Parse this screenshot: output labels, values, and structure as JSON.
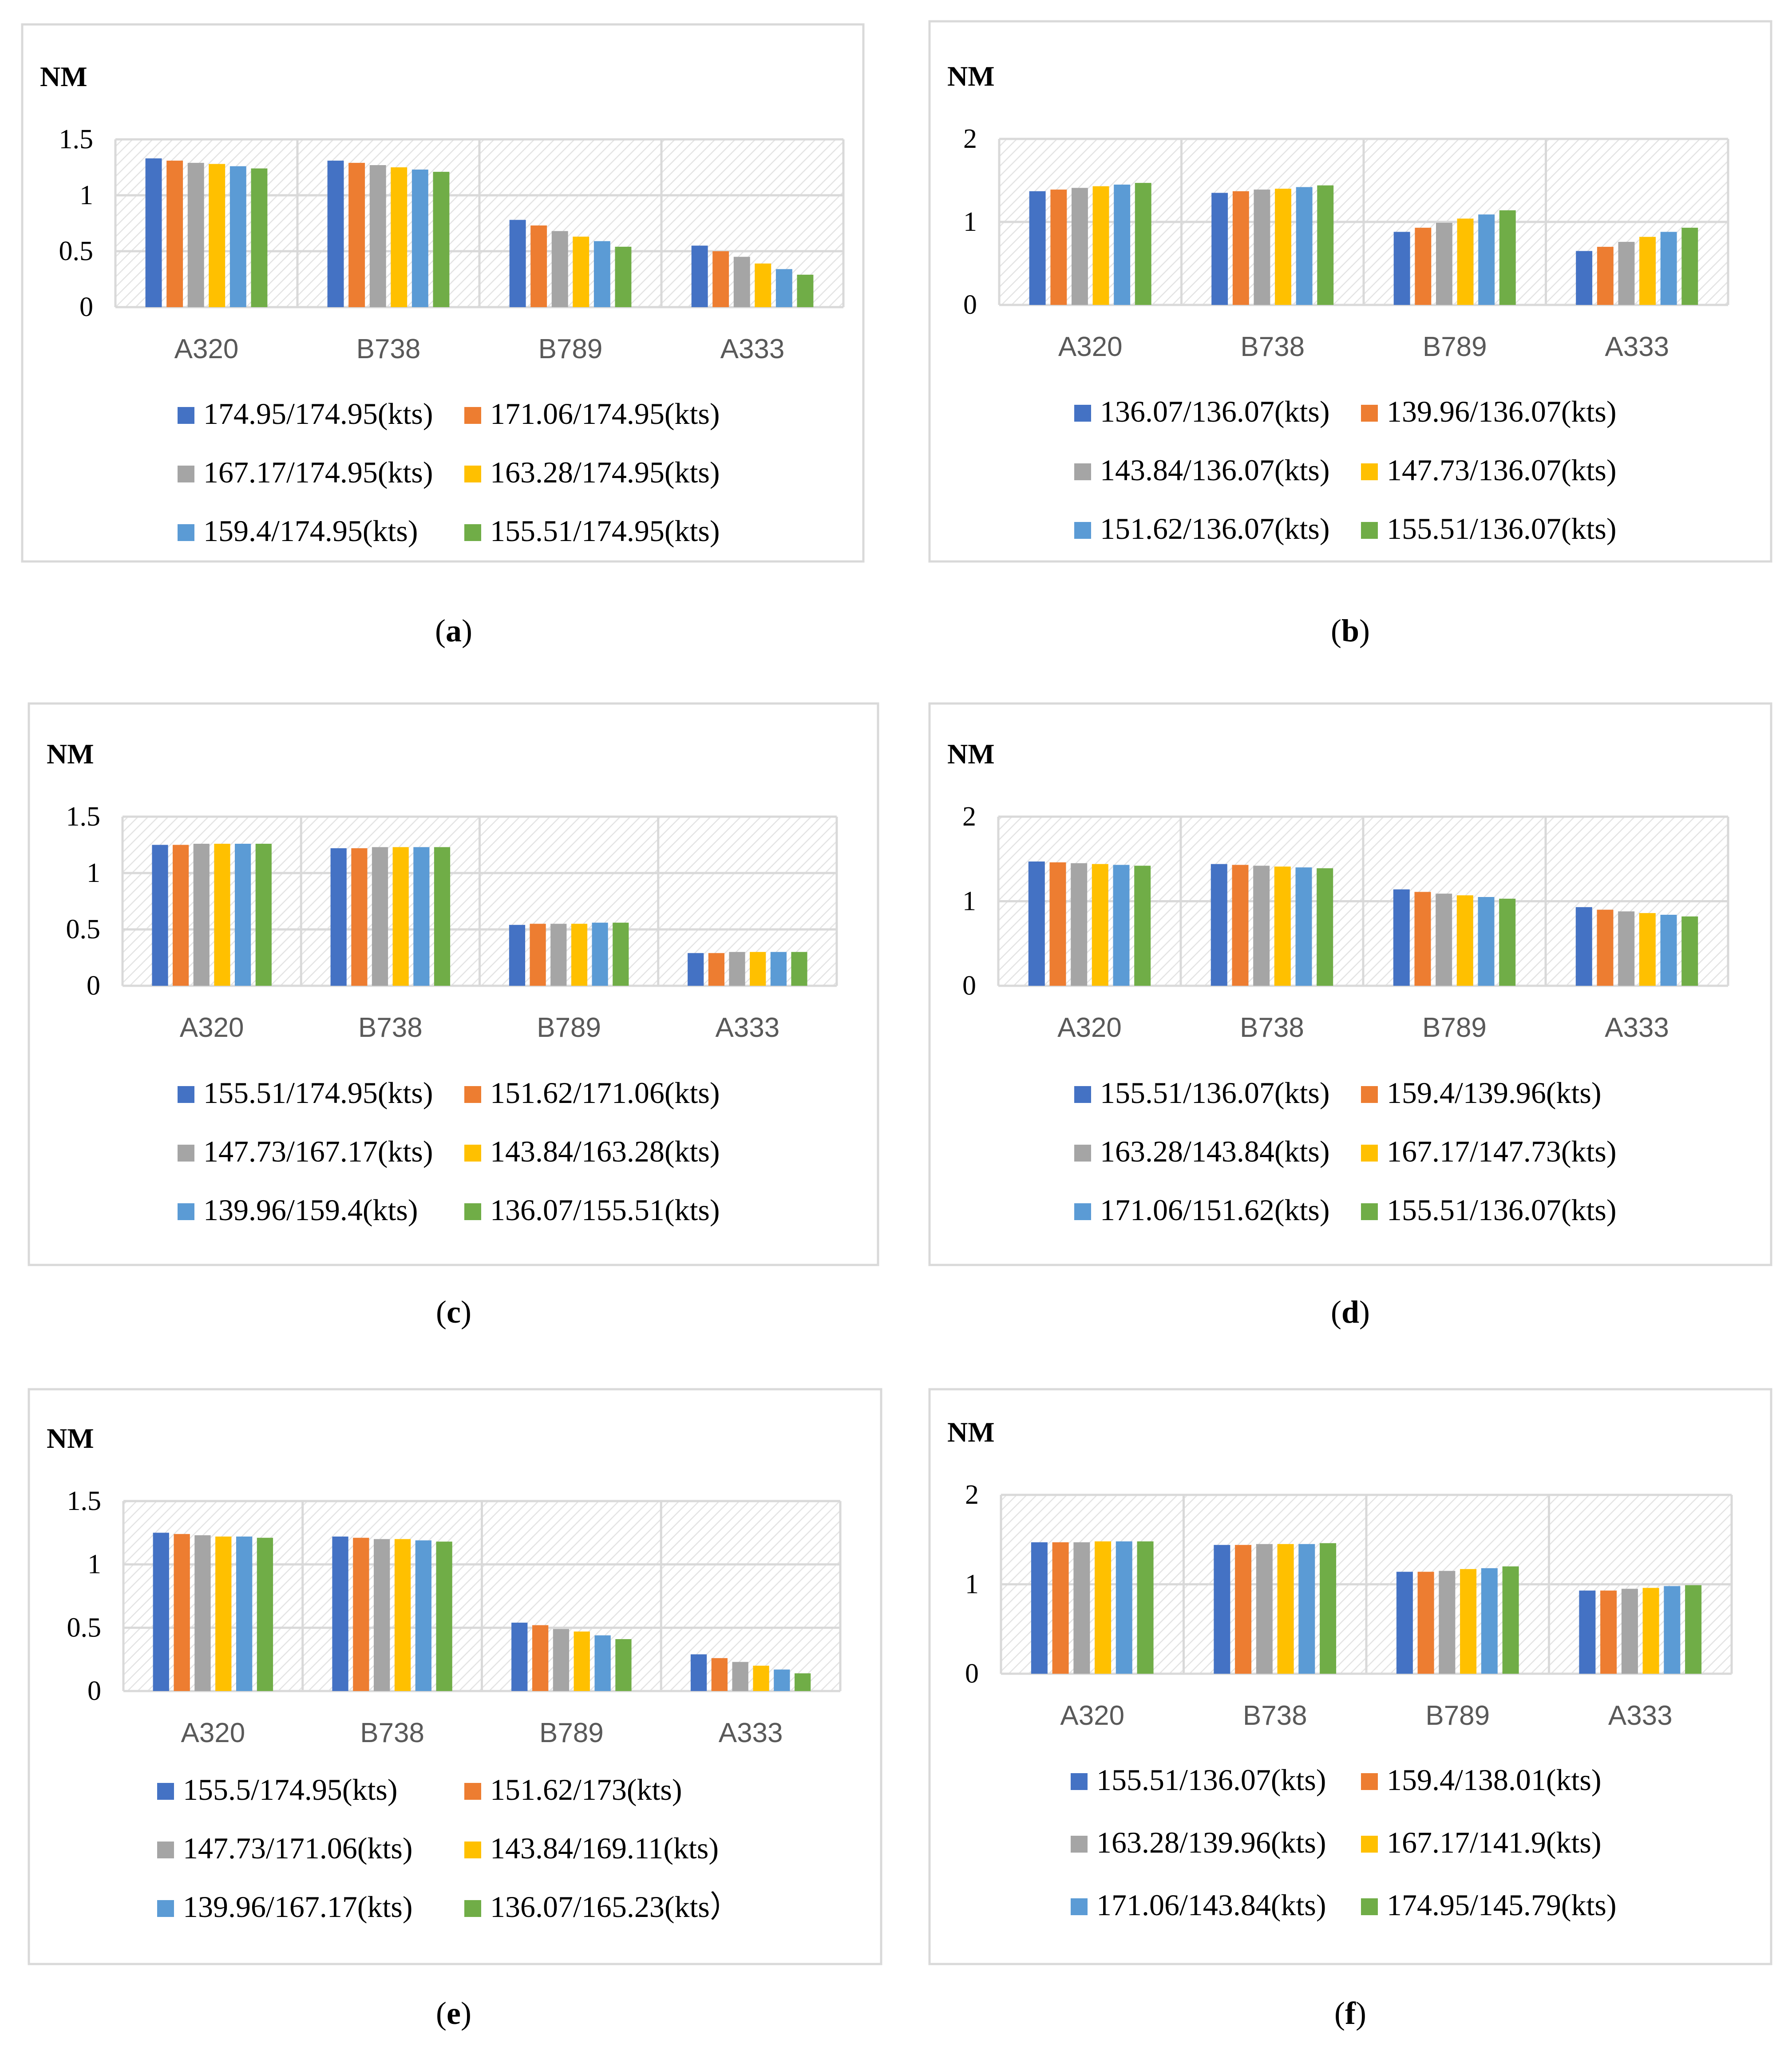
{
  "colors": {
    "series": [
      "#4472c4",
      "#ed7d31",
      "#a5a5a5",
      "#ffc000",
      "#5b9bd5",
      "#70ad47"
    ],
    "frame": "#d9d9d9",
    "gridline": "#d9d9d9",
    "plot_hatch": "#e3e3e3"
  },
  "chart_data": [
    {
      "type": "bar",
      "panel": "a",
      "caption_letter": "a",
      "unit_label": "NM",
      "categories": [
        "A320",
        "B738",
        "B789",
        "A333"
      ],
      "yticks": [
        "0",
        "0.5",
        "1",
        "1.5"
      ],
      "ylim": [
        0,
        1.5
      ],
      "series": [
        {
          "name": "174.95/174.95(kts)",
          "values": [
            1.33,
            1.31,
            0.78,
            0.55
          ]
        },
        {
          "name": "171.06/174.95(kts)",
          "values": [
            1.31,
            1.29,
            0.73,
            0.5
          ]
        },
        {
          "name": "167.17/174.95(kts)",
          "values": [
            1.29,
            1.27,
            0.68,
            0.45
          ]
        },
        {
          "name": "163.28/174.95(kts)",
          "values": [
            1.28,
            1.25,
            0.63,
            0.39
          ]
        },
        {
          "name": "159.4/174.95(kts)",
          "values": [
            1.26,
            1.23,
            0.59,
            0.34
          ]
        },
        {
          "name": "155.51/174.95(kts)",
          "values": [
            1.24,
            1.21,
            0.54,
            0.29
          ]
        }
      ]
    },
    {
      "type": "bar",
      "panel": "b",
      "caption_letter": "b",
      "unit_label": "NM",
      "categories": [
        "A320",
        "B738",
        "B789",
        "A333"
      ],
      "yticks": [
        "0",
        "1",
        "2"
      ],
      "ylim": [
        0,
        2
      ],
      "series": [
        {
          "name": "136.07/136.07(kts)",
          "values": [
            1.37,
            1.35,
            0.88,
            0.65
          ]
        },
        {
          "name": "139.96/136.07(kts)",
          "values": [
            1.39,
            1.37,
            0.93,
            0.7
          ]
        },
        {
          "name": "143.84/136.07(kts)",
          "values": [
            1.41,
            1.39,
            0.99,
            0.76
          ]
        },
        {
          "name": "147.73/136.07(kts)",
          "values": [
            1.43,
            1.4,
            1.04,
            0.82
          ]
        },
        {
          "name": "151.62/136.07(kts)",
          "values": [
            1.45,
            1.42,
            1.09,
            0.88
          ]
        },
        {
          "name": "155.51/136.07(kts)",
          "values": [
            1.47,
            1.44,
            1.14,
            0.93
          ]
        }
      ]
    },
    {
      "type": "bar",
      "panel": "c",
      "caption_letter": "c",
      "unit_label": "NM",
      "categories": [
        "A320",
        "B738",
        "B789",
        "A333"
      ],
      "yticks": [
        "0",
        "0.5",
        "1",
        "1.5"
      ],
      "ylim": [
        0,
        1.5
      ],
      "series": [
        {
          "name": "155.51/174.95(kts)",
          "values": [
            1.25,
            1.22,
            0.54,
            0.29
          ]
        },
        {
          "name": "151.62/171.06(kts)",
          "values": [
            1.25,
            1.22,
            0.55,
            0.29
          ]
        },
        {
          "name": "147.73/167.17(kts)",
          "values": [
            1.26,
            1.23,
            0.55,
            0.3
          ]
        },
        {
          "name": "143.84/163.28(kts)",
          "values": [
            1.26,
            1.23,
            0.55,
            0.3
          ]
        },
        {
          "name": "139.96/159.4(kts)",
          "values": [
            1.26,
            1.23,
            0.56,
            0.3
          ]
        },
        {
          "name": "136.07/155.51(kts)",
          "values": [
            1.26,
            1.23,
            0.56,
            0.3
          ]
        }
      ]
    },
    {
      "type": "bar",
      "panel": "d",
      "caption_letter": "d",
      "unit_label": "NM",
      "categories": [
        "A320",
        "B738",
        "B789",
        "A333"
      ],
      "yticks": [
        "0",
        "1",
        "2"
      ],
      "ylim": [
        0,
        2
      ],
      "series": [
        {
          "name": "155.51/136.07(kts)",
          "values": [
            1.47,
            1.44,
            1.14,
            0.93
          ]
        },
        {
          "name": "159.4/139.96(kts)",
          "values": [
            1.46,
            1.43,
            1.11,
            0.9
          ]
        },
        {
          "name": "163.28/143.84(kts)",
          "values": [
            1.45,
            1.42,
            1.09,
            0.88
          ]
        },
        {
          "name": "167.17/147.73(kts)",
          "values": [
            1.44,
            1.41,
            1.07,
            0.86
          ]
        },
        {
          "name": "171.06/151.62(kts)",
          "values": [
            1.43,
            1.4,
            1.05,
            0.84
          ]
        },
        {
          "name": "155.51/136.07(kts)",
          "values": [
            1.42,
            1.39,
            1.03,
            0.82
          ]
        }
      ]
    },
    {
      "type": "bar",
      "panel": "e",
      "caption_letter": "e",
      "unit_label": "NM",
      "categories": [
        "A320",
        "B738",
        "B789",
        "A333"
      ],
      "yticks": [
        "0",
        "0.5",
        "1",
        "1.5"
      ],
      "ylim": [
        0,
        1.5
      ],
      "series": [
        {
          "name": "155.5/174.95(kts)",
          "values": [
            1.25,
            1.22,
            0.54,
            0.29
          ]
        },
        {
          "name": "151.62/173(kts)",
          "values": [
            1.24,
            1.21,
            0.52,
            0.26
          ]
        },
        {
          "name": "147.73/171.06(kts)",
          "values": [
            1.23,
            1.2,
            0.49,
            0.23
          ]
        },
        {
          "name": "143.84/169.11(kts)",
          "values": [
            1.22,
            1.2,
            0.47,
            0.2
          ]
        },
        {
          "name": "139.96/167.17(kts)",
          "values": [
            1.22,
            1.19,
            0.44,
            0.17
          ]
        },
        {
          "name": "136.07/165.23(kts）",
          "values": [
            1.21,
            1.18,
            0.41,
            0.14
          ]
        }
      ]
    },
    {
      "type": "bar",
      "panel": "f",
      "caption_letter": "f",
      "unit_label": "NM",
      "categories": [
        "A320",
        "B738",
        "B789",
        "A333"
      ],
      "yticks": [
        "0",
        "1",
        "2"
      ],
      "ylim": [
        0,
        2
      ],
      "series": [
        {
          "name": "155.51/136.07(kts)",
          "values": [
            1.47,
            1.44,
            1.14,
            0.93
          ]
        },
        {
          "name": "159.4/138.01(kts)",
          "values": [
            1.47,
            1.44,
            1.14,
            0.93
          ]
        },
        {
          "name": "163.28/139.96(kts)",
          "values": [
            1.47,
            1.45,
            1.15,
            0.95
          ]
        },
        {
          "name": "167.17/141.9(kts)",
          "values": [
            1.48,
            1.45,
            1.17,
            0.96
          ]
        },
        {
          "name": "171.06/143.84(kts)",
          "values": [
            1.48,
            1.45,
            1.18,
            0.98
          ]
        },
        {
          "name": "174.95/145.79(kts)",
          "values": [
            1.48,
            1.46,
            1.2,
            0.99
          ]
        }
      ]
    }
  ]
}
